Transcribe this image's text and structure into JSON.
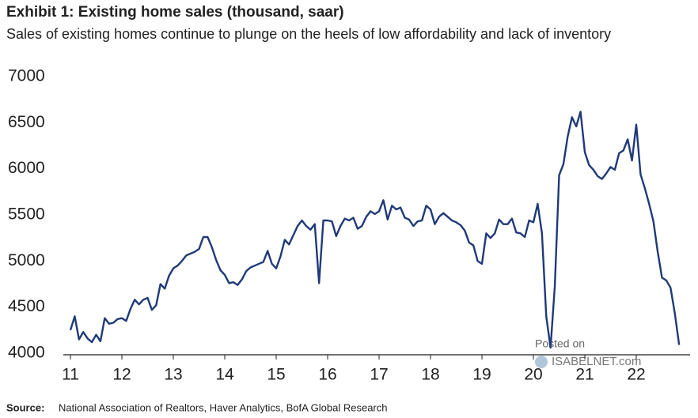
{
  "chart_data": {
    "type": "line",
    "title": "Exhibit 1: Existing home sales (thousand, saar)",
    "subtitle": "Sales of existing homes continue to plunge on the heels of low affordability and lack of inventory",
    "source_label": "Source:",
    "source": "National Association  of Realtors, Haver Analytics, BofA Global Research",
    "watermark": [
      "Posted on",
      "ISABELNET.com"
    ],
    "color": "#1f3a78",
    "grid": false,
    "ylim": [
      4000,
      7000
    ],
    "yticks": [
      4000,
      4500,
      5000,
      5500,
      6000,
      6500,
      7000
    ],
    "categories": [
      "11",
      null,
      null,
      null,
      null,
      null,
      null,
      null,
      null,
      null,
      null,
      null,
      "12",
      null,
      null,
      null,
      null,
      null,
      null,
      null,
      null,
      null,
      null,
      null,
      "13",
      null,
      null,
      null,
      null,
      null,
      null,
      null,
      null,
      null,
      null,
      null,
      "14",
      null,
      null,
      null,
      null,
      null,
      null,
      null,
      null,
      null,
      null,
      null,
      "15",
      null,
      null,
      null,
      null,
      null,
      null,
      null,
      null,
      null,
      null,
      null,
      "16",
      null,
      null,
      null,
      null,
      null,
      null,
      null,
      null,
      null,
      null,
      null,
      "17",
      null,
      null,
      null,
      null,
      null,
      null,
      null,
      null,
      null,
      null,
      null,
      "18",
      null,
      null,
      null,
      null,
      null,
      null,
      null,
      null,
      null,
      null,
      null,
      "19",
      null,
      null,
      null,
      null,
      null,
      null,
      null,
      null,
      null,
      null,
      null,
      "20",
      null,
      null,
      null,
      null,
      null,
      null,
      null,
      null,
      null,
      null,
      null,
      "21",
      null,
      null,
      null,
      null,
      null,
      null,
      null,
      null,
      null,
      null,
      null,
      "22",
      null,
      null,
      null,
      null,
      null,
      null,
      null,
      null,
      null,
      null
    ],
    "values": [
      4250,
      4400,
      4150,
      4230,
      4160,
      4120,
      4200,
      4130,
      4380,
      4320,
      4330,
      4370,
      4380,
      4350,
      4480,
      4580,
      4530,
      4580,
      4600,
      4470,
      4520,
      4750,
      4700,
      4840,
      4920,
      4950,
      5000,
      5060,
      5080,
      5100,
      5130,
      5260,
      5260,
      5150,
      5010,
      4900,
      4850,
      4760,
      4770,
      4740,
      4800,
      4890,
      4930,
      4950,
      4970,
      4990,
      5110,
      4970,
      4920,
      5050,
      5230,
      5180,
      5280,
      5380,
      5440,
      5380,
      5340,
      5400,
      4760,
      5440,
      5440,
      5430,
      5270,
      5380,
      5460,
      5440,
      5470,
      5350,
      5380,
      5480,
      5540,
      5510,
      5540,
      5660,
      5450,
      5600,
      5560,
      5580,
      5470,
      5450,
      5380,
      5430,
      5440,
      5600,
      5560,
      5400,
      5480,
      5520,
      5480,
      5440,
      5420,
      5390,
      5330,
      5200,
      5170,
      5000,
      4970,
      5300,
      5250,
      5300,
      5450,
      5400,
      5400,
      5460,
      5310,
      5300,
      5260,
      5440,
      5420,
      5620,
      5300,
      4400,
      4060,
      4730,
      5930,
      6050,
      6350,
      6560,
      6460,
      6620,
      6180,
      6040,
      5990,
      5920,
      5890,
      5950,
      6020,
      5990,
      6170,
      6200,
      6320,
      6090,
      6480,
      5940,
      5790,
      5620,
      5430,
      5100,
      4820,
      4790,
      4710,
      4430,
      4090
    ]
  }
}
